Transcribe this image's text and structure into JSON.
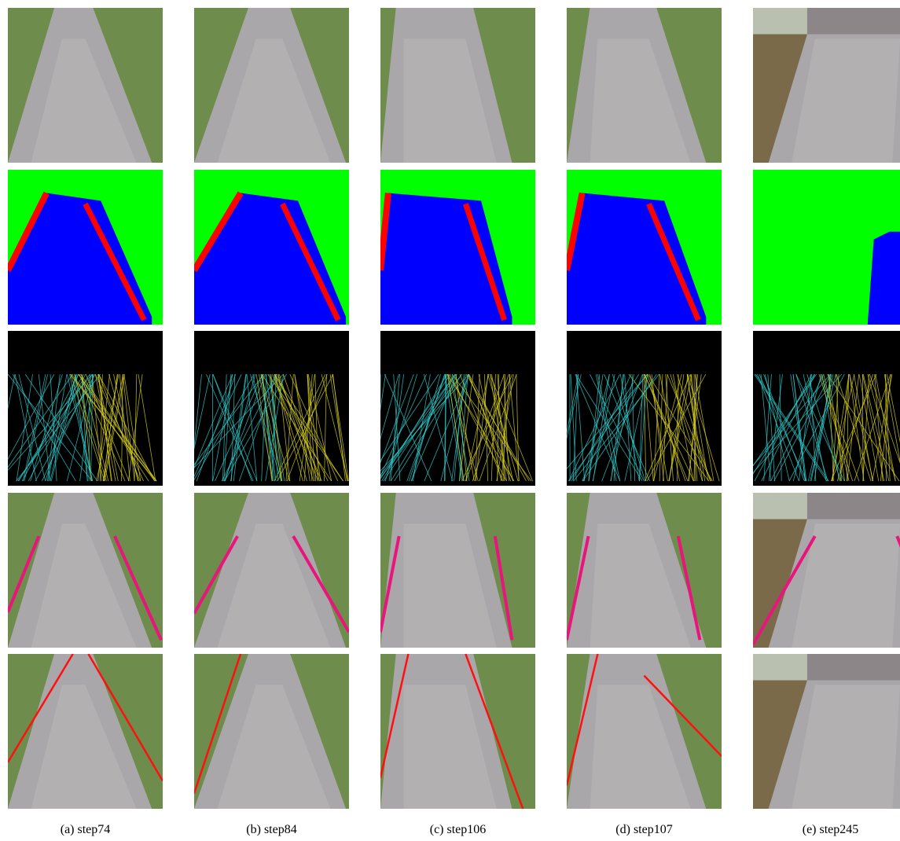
{
  "figure": {
    "captions": [
      "(a) step74",
      "(b) step84",
      "(c) step106",
      "(d) step107",
      "(e) step245"
    ]
  }
}
